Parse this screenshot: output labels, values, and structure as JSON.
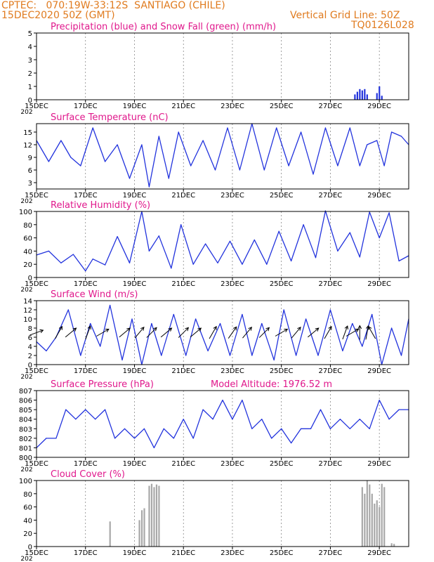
{
  "header": {
    "line1": "CPTEC:   070:19W-33:12S  SANTIAGO (CHILE)",
    "line2": "15DEC2020 50Z (GMT)",
    "grid_note": "Vertical Grid Line: 50Z",
    "code": "TQ0126L028"
  },
  "x_axis": {
    "tick_labels": [
      "15DEC",
      "17DEC",
      "19DEC",
      "21DEC",
      "23DEC",
      "25DEC",
      "27DEC",
      "29DEC"
    ],
    "year_label": "202"
  },
  "colors": {
    "header": "#e07b1f",
    "title": "#e0188c",
    "line": "#2233dd",
    "snow": "#1a9a1a",
    "cloud": "#a8a8a8",
    "arrow": "#000000"
  },
  "chart_data": [
    {
      "type": "bar",
      "title": "Precipitation (blue) and Snow Fall (green) (mm/h)",
      "ylim": [
        0,
        5
      ],
      "yticks": [
        0,
        1,
        2,
        3,
        4,
        5
      ],
      "x": [
        28.0,
        28.1,
        28.2,
        28.3,
        28.4,
        28.5,
        28.9,
        29.0,
        29.1
      ],
      "series": [
        {
          "name": "Precipitation",
          "values": [
            0.4,
            0.6,
            0.8,
            0.7,
            0.8,
            0.4,
            0.5,
            1.0,
            0.3
          ]
        },
        {
          "name": "Snow Fall",
          "values": [
            0,
            0,
            0,
            0,
            0,
            0,
            0,
            0,
            0
          ]
        }
      ]
    },
    {
      "type": "line",
      "title": "Surface Temperature (nC)",
      "ylim": [
        1.5,
        17
      ],
      "yticks": [
        3,
        6,
        9,
        12,
        15
      ],
      "x": [
        15.0,
        15.5,
        16.0,
        16.4,
        16.8,
        17.3,
        17.8,
        18.3,
        18.8,
        19.3,
        19.6,
        20.0,
        20.4,
        20.8,
        21.3,
        21.8,
        22.3,
        22.8,
        23.3,
        23.8,
        24.3,
        24.8,
        25.3,
        25.8,
        26.3,
        26.8,
        27.3,
        27.8,
        28.2,
        28.5,
        28.9,
        29.2,
        29.5,
        29.9,
        30.2
      ],
      "y": [
        13,
        8,
        13,
        9,
        7,
        16,
        8,
        12,
        4,
        12,
        2,
        14,
        4,
        15,
        7,
        13,
        6,
        16,
        6,
        17,
        6,
        16,
        7,
        15,
        5,
        16,
        7,
        16,
        7,
        12,
        13,
        7,
        15,
        14,
        12
      ]
    },
    {
      "type": "line",
      "title": "Relative Humidity (%)",
      "ylim": [
        0,
        100
      ],
      "yticks": [
        0,
        20,
        40,
        60,
        80,
        100
      ],
      "x": [
        15.0,
        15.5,
        16.0,
        16.5,
        17.0,
        17.3,
        17.8,
        18.3,
        18.8,
        19.3,
        19.6,
        20.0,
        20.5,
        20.9,
        21.4,
        21.9,
        22.4,
        22.9,
        23.4,
        23.9,
        24.4,
        24.9,
        25.4,
        25.9,
        26.4,
        26.8,
        27.3,
        27.8,
        28.2,
        28.6,
        29.0,
        29.4,
        29.8,
        30.2
      ],
      "y": [
        34,
        40,
        22,
        35,
        10,
        28,
        19,
        62,
        22,
        100,
        40,
        63,
        14,
        80,
        20,
        51,
        22,
        55,
        20,
        57,
        20,
        70,
        25,
        80,
        30,
        101,
        40,
        68,
        31,
        99,
        60,
        98,
        25,
        33
      ]
    },
    {
      "type": "line",
      "title": "Surface Wind (m/s)",
      "ylim": [
        0,
        14
      ],
      "yticks": [
        0,
        2,
        4,
        6,
        8,
        10,
        12,
        14
      ],
      "x": [
        15.0,
        15.4,
        15.8,
        16.3,
        16.8,
        17.2,
        17.6,
        18.0,
        18.5,
        18.9,
        19.3,
        19.7,
        20.1,
        20.6,
        21.1,
        21.5,
        22.0,
        22.5,
        22.9,
        23.4,
        23.8,
        24.2,
        24.7,
        25.1,
        25.6,
        26.0,
        26.5,
        27.0,
        27.5,
        27.9,
        28.3,
        28.7,
        29.1,
        29.5,
        29.9,
        30.2
      ],
      "y": [
        5,
        3,
        6,
        12,
        2,
        9,
        4,
        13,
        1,
        10,
        0,
        9,
        2,
        11,
        2,
        10,
        3,
        9,
        2,
        11,
        2,
        9,
        1,
        12,
        2,
        10,
        2,
        12,
        3,
        9,
        4,
        11,
        0,
        8,
        2,
        10
      ],
      "arrows_angle_deg": [
        20,
        60,
        40,
        70,
        30,
        40,
        50,
        45,
        40,
        45,
        40,
        60,
        55,
        50,
        45,
        30,
        50,
        40,
        60,
        70,
        30,
        90,
        80,
        120
      ],
      "arrow_days": [
        15.0,
        15.9,
        16.4,
        17.1,
        17.7,
        18.6,
        19.2,
        19.7,
        20.3,
        21.0,
        21.5,
        22.2,
        23.0,
        23.6,
        24.3,
        25.0,
        25.6,
        26.3,
        26.9,
        27.6,
        27.9,
        28.2,
        28.5,
        28.7
      ]
    },
    {
      "type": "line",
      "title": "Surface Pressure (hPa)",
      "annotation": "Model Altitude: 1976.52  m",
      "ylim": [
        800,
        807
      ],
      "yticks": [
        800,
        801,
        802,
        803,
        804,
        805,
        806,
        807
      ],
      "x": [
        15.0,
        15.4,
        15.8,
        16.2,
        16.6,
        17.0,
        17.4,
        17.8,
        18.2,
        18.6,
        19.0,
        19.4,
        19.8,
        20.2,
        20.6,
        21.0,
        21.4,
        21.8,
        22.2,
        22.6,
        23.0,
        23.4,
        23.8,
        24.2,
        24.6,
        25.0,
        25.4,
        25.8,
        26.2,
        26.6,
        27.0,
        27.4,
        27.8,
        28.2,
        28.6,
        29.0,
        29.4,
        29.8,
        30.2
      ],
      "y": [
        801,
        802,
        802,
        805,
        804,
        805,
        804,
        805,
        802,
        803,
        802,
        803,
        801,
        803,
        802,
        804,
        802,
        805,
        804,
        806,
        804,
        806,
        803,
        804,
        802,
        803,
        801.5,
        803,
        803,
        805,
        803,
        804,
        803,
        804,
        803,
        806,
        804,
        805,
        805
      ]
    },
    {
      "type": "bar",
      "title": "Cloud Cover (%)",
      "ylim": [
        0,
        100
      ],
      "yticks": [
        0,
        20,
        40,
        60,
        80,
        100
      ],
      "x": [
        18.0,
        19.2,
        19.3,
        19.4,
        19.6,
        19.7,
        19.8,
        19.9,
        20.0,
        28.3,
        28.4,
        28.5,
        28.6,
        28.7,
        28.8,
        28.9,
        29.0,
        29.1,
        29.2,
        29.5,
        29.6
      ],
      "values": [
        38,
        40,
        55,
        58,
        92,
        95,
        90,
        94,
        92,
        90,
        80,
        100,
        94,
        80,
        65,
        70,
        60,
        95,
        90,
        5,
        4
      ]
    }
  ]
}
